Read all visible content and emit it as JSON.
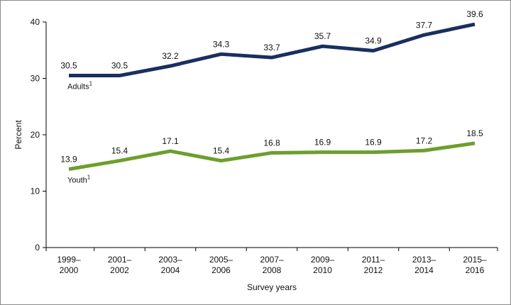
{
  "chart_data": {
    "type": "line",
    "title": "",
    "xlabel": "Survey years",
    "ylabel": "Percent",
    "ylim": [
      0,
      40
    ],
    "yticks": [
      "0",
      "10",
      "20",
      "30",
      "40"
    ],
    "grid": false,
    "legend": "none",
    "categories": [
      [
        "1999–",
        "2000"
      ],
      [
        "2001–",
        "2002"
      ],
      [
        "2003–",
        "2004"
      ],
      [
        "2005–",
        "2006"
      ],
      [
        "2007–",
        "2008"
      ],
      [
        "2009–",
        "2010"
      ],
      [
        "2011–",
        "2012"
      ],
      [
        "2013–",
        "2014"
      ],
      [
        "2015–",
        "2016"
      ]
    ],
    "series": [
      {
        "name": "Adults",
        "footnote": "1",
        "color": "#1a2f5f",
        "values": [
          30.5,
          30.5,
          32.2,
          34.3,
          33.7,
          35.7,
          34.9,
          37.7,
          39.6
        ],
        "labels": [
          "30.5",
          "30.5",
          "32.2",
          "34.3",
          "33.7",
          "35.7",
          "34.9",
          "37.7",
          "39.6"
        ]
      },
      {
        "name": "Youth",
        "footnote": "1",
        "color": "#6e9e2e",
        "values": [
          13.9,
          15.4,
          17.1,
          15.4,
          16.8,
          16.9,
          16.9,
          17.2,
          18.5
        ],
        "labels": [
          "13.9",
          "15.4",
          "17.1",
          "15.4",
          "16.8",
          "16.9",
          "16.9",
          "17.2",
          "18.5"
        ]
      }
    ]
  }
}
